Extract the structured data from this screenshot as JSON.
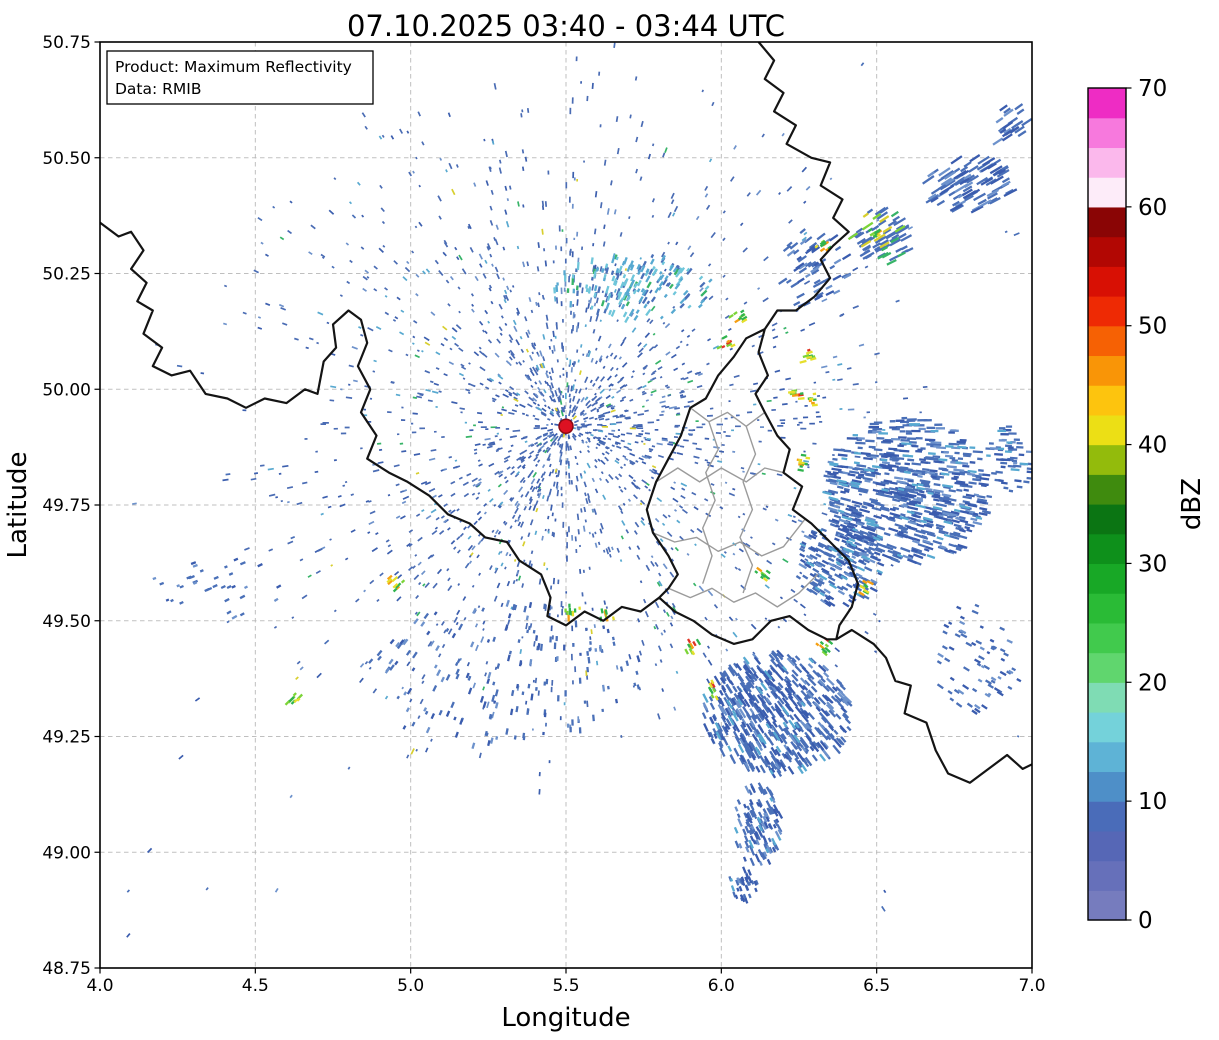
{
  "chart_data": {
    "type": "heatmap",
    "title": "07.10.2025 03:40 - 03:44 UTC",
    "xlabel": "Longitude",
    "ylabel": "Latitude",
    "xlim": [
      4.0,
      7.0
    ],
    "ylim": [
      48.75,
      50.75
    ],
    "xticks": [
      4.0,
      4.5,
      5.0,
      5.5,
      6.0,
      6.5,
      7.0
    ],
    "yticks": [
      48.75,
      49.0,
      49.25,
      49.5,
      49.75,
      50.0,
      50.25,
      50.5,
      50.75
    ],
    "grid": true,
    "legend_position": "none",
    "annotation_box": [
      "Product: Maximum Reflectivity",
      "Data: RMIB"
    ],
    "colorbar": {
      "label": "dBZ",
      "min": 0,
      "max": 70,
      "step": 2.5,
      "ticks": [
        0,
        10,
        20,
        30,
        40,
        50,
        60,
        70
      ],
      "colors": [
        "#767cbe",
        "#6670ba",
        "#5667b6",
        "#4a6cb9",
        "#4e8fc8",
        "#5eb3d6",
        "#74d2da",
        "#7fdcb4",
        "#60d66e",
        "#41ca4d",
        "#2abb36",
        "#18a826",
        "#0e901b",
        "#0b7513",
        "#3f8b0e",
        "#93bb0c",
        "#ecdf15",
        "#fdc40e",
        "#f99507",
        "#f66104",
        "#ee2a04",
        "#d81004",
        "#b20703",
        "#8a0505",
        "#fdecf9",
        "#fbb8ec",
        "#f779dd",
        "#ee2cc4"
      ]
    },
    "radar_site": {
      "lon": 5.5,
      "lat": 49.92,
      "marker_color": "#dd1122",
      "marker_edge": "#8a0a14"
    },
    "borders": {
      "country_color": "#141414",
      "district_color": "#9b9b9b",
      "country": [
        [
          [
            4.0,
            50.36
          ],
          [
            4.06,
            50.33
          ],
          [
            4.1,
            50.34
          ],
          [
            4.14,
            50.3
          ],
          [
            4.1,
            50.26
          ],
          [
            4.15,
            50.23
          ],
          [
            4.12,
            50.19
          ],
          [
            4.17,
            50.17
          ],
          [
            4.14,
            50.12
          ],
          [
            4.2,
            50.09
          ],
          [
            4.17,
            50.05
          ],
          [
            4.23,
            50.03
          ],
          [
            4.29,
            50.04
          ],
          [
            4.34,
            49.99
          ],
          [
            4.41,
            49.98
          ],
          [
            4.47,
            49.96
          ],
          [
            4.53,
            49.98
          ],
          [
            4.6,
            49.97
          ],
          [
            4.66,
            50.0
          ],
          [
            4.7,
            49.99
          ],
          [
            4.72,
            50.06
          ],
          [
            4.76,
            50.09
          ],
          [
            4.75,
            50.14
          ],
          [
            4.8,
            50.17
          ],
          [
            4.84,
            50.15
          ],
          [
            4.86,
            50.1
          ],
          [
            4.83,
            50.05
          ],
          [
            4.87,
            50.0
          ],
          [
            4.84,
            49.95
          ],
          [
            4.89,
            49.9
          ],
          [
            4.86,
            49.85
          ],
          [
            4.93,
            49.82
          ],
          [
            4.99,
            49.8
          ],
          [
            5.06,
            49.77
          ],
          [
            5.12,
            49.73
          ],
          [
            5.19,
            49.71
          ],
          [
            5.24,
            49.68
          ],
          [
            5.31,
            49.67
          ],
          [
            5.35,
            49.63
          ],
          [
            5.42,
            49.6
          ],
          [
            5.45,
            49.55
          ],
          [
            5.44,
            49.51
          ],
          [
            5.5,
            49.49
          ],
          [
            5.56,
            49.52
          ],
          [
            5.62,
            49.5
          ],
          [
            5.68,
            49.53
          ],
          [
            5.74,
            49.52
          ],
          [
            5.8,
            49.55
          ],
          [
            5.85,
            49.52
          ],
          [
            5.91,
            49.5
          ],
          [
            5.97,
            49.47
          ],
          [
            6.04,
            49.45
          ],
          [
            6.1,
            49.46
          ],
          [
            6.16,
            49.5
          ],
          [
            6.22,
            49.51
          ],
          [
            6.28,
            49.48
          ],
          [
            6.34,
            49.46
          ],
          [
            6.37,
            49.46
          ],
          [
            6.42,
            49.48
          ],
          [
            6.49,
            49.45
          ],
          [
            6.53,
            49.42
          ],
          [
            6.56,
            49.37
          ],
          [
            6.61,
            49.36
          ],
          [
            6.59,
            49.3
          ],
          [
            6.66,
            49.28
          ],
          [
            6.69,
            49.22
          ],
          [
            6.73,
            49.17
          ],
          [
            6.8,
            49.15
          ],
          [
            6.86,
            49.18
          ],
          [
            6.92,
            49.21
          ],
          [
            6.97,
            49.18
          ],
          [
            7.0,
            49.19
          ]
        ],
        [
          [
            6.12,
            50.75
          ],
          [
            6.17,
            50.71
          ],
          [
            6.14,
            50.67
          ],
          [
            6.2,
            50.64
          ],
          [
            6.17,
            50.6
          ],
          [
            6.24,
            50.57
          ],
          [
            6.21,
            50.53
          ],
          [
            6.29,
            50.5
          ],
          [
            6.35,
            50.49
          ],
          [
            6.32,
            50.44
          ],
          [
            6.39,
            50.41
          ],
          [
            6.36,
            50.37
          ],
          [
            6.41,
            50.34
          ],
          [
            6.36,
            50.31
          ],
          [
            6.32,
            50.28
          ],
          [
            6.35,
            50.24
          ],
          [
            6.3,
            50.2
          ],
          [
            6.24,
            50.17
          ],
          [
            6.18,
            50.17
          ],
          [
            6.14,
            50.13
          ],
          [
            6.12,
            50.08
          ],
          [
            6.15,
            50.03
          ],
          [
            6.11,
            49.99
          ],
          [
            6.14,
            49.95
          ],
          [
            6.18,
            49.9
          ],
          [
            6.22,
            49.87
          ],
          [
            6.2,
            49.82
          ],
          [
            6.26,
            49.79
          ],
          [
            6.23,
            49.74
          ],
          [
            6.29,
            49.71
          ],
          [
            6.35,
            49.67
          ],
          [
            6.41,
            49.63
          ],
          [
            6.44,
            49.58
          ],
          [
            6.42,
            49.53
          ],
          [
            6.38,
            49.49
          ],
          [
            6.37,
            49.46
          ]
        ],
        [
          [
            6.14,
            50.13
          ],
          [
            6.08,
            50.11
          ],
          [
            6.04,
            50.07
          ],
          [
            5.99,
            50.03
          ],
          [
            5.95,
            49.98
          ],
          [
            5.9,
            49.96
          ],
          [
            5.87,
            49.9
          ],
          [
            5.83,
            49.85
          ],
          [
            5.79,
            49.8
          ],
          [
            5.76,
            49.74
          ],
          [
            5.78,
            49.69
          ],
          [
            5.83,
            49.64
          ],
          [
            5.86,
            49.6
          ],
          [
            5.83,
            49.57
          ],
          [
            5.8,
            49.55
          ]
        ]
      ],
      "district": [
        [
          [
            5.9,
            49.96
          ],
          [
            5.96,
            49.93
          ],
          [
            6.02,
            49.95
          ],
          [
            6.08,
            49.92
          ],
          [
            6.14,
            49.95
          ]
        ],
        [
          [
            5.79,
            49.8
          ],
          [
            5.86,
            49.83
          ],
          [
            5.93,
            49.8
          ],
          [
            6.0,
            49.83
          ],
          [
            6.08,
            49.8
          ],
          [
            6.14,
            49.83
          ],
          [
            6.2,
            49.82
          ]
        ],
        [
          [
            5.96,
            49.93
          ],
          [
            5.99,
            49.87
          ],
          [
            5.95,
            49.82
          ],
          [
            5.98,
            49.76
          ],
          [
            5.94,
            49.7
          ],
          [
            5.97,
            49.64
          ],
          [
            5.94,
            49.58
          ]
        ],
        [
          [
            6.08,
            49.92
          ],
          [
            6.11,
            49.86
          ],
          [
            6.07,
            49.8
          ],
          [
            6.1,
            49.74
          ],
          [
            6.06,
            49.68
          ],
          [
            6.1,
            49.62
          ],
          [
            6.07,
            49.56
          ]
        ],
        [
          [
            5.78,
            49.69
          ],
          [
            5.85,
            49.67
          ],
          [
            5.92,
            49.68
          ],
          [
            5.99,
            49.65
          ],
          [
            6.06,
            49.67
          ],
          [
            6.13,
            49.64
          ],
          [
            6.2,
            49.66
          ],
          [
            6.27,
            49.72
          ]
        ],
        [
          [
            5.83,
            49.57
          ],
          [
            5.9,
            49.55
          ],
          [
            5.97,
            49.57
          ],
          [
            6.04,
            49.54
          ],
          [
            6.11,
            49.56
          ],
          [
            6.18,
            49.53
          ],
          [
            6.25,
            49.56
          ],
          [
            6.31,
            49.6
          ]
        ]
      ]
    },
    "echo_field": {
      "seed": 20251007,
      "radial_speckle": {
        "center": [
          5.5,
          49.92
        ],
        "max_radius_px": 372,
        "samples": 9000
      },
      "clusters": [
        {
          "name": "ne_far_streaks",
          "c": [
            6.8,
            50.44
          ],
          "rx": 0.14,
          "ry": 0.06,
          "n": 90,
          "len": [
            7,
            15
          ],
          "palette": "blue_sparse"
        },
        {
          "name": "ne_corner",
          "c": [
            6.93,
            50.57
          ],
          "rx": 0.06,
          "ry": 0.05,
          "n": 25,
          "len": [
            6,
            12
          ],
          "palette": "blue_sparse"
        },
        {
          "name": "ne_streaks",
          "c": [
            6.52,
            50.33
          ],
          "rx": 0.1,
          "ry": 0.06,
          "n": 70,
          "len": [
            6,
            13
          ],
          "palette": "mixed"
        },
        {
          "name": "ne_mid",
          "c": [
            6.3,
            50.26
          ],
          "rx": 0.11,
          "ry": 0.09,
          "n": 60,
          "len": [
            5,
            10
          ],
          "palette": "blue_sparse"
        },
        {
          "name": "north_arc",
          "c": [
            5.72,
            50.22
          ],
          "rx": 0.26,
          "ry": 0.07,
          "n": 170,
          "len": [
            3,
            8
          ],
          "palette": "cyan"
        },
        {
          "name": "east_large",
          "c": [
            6.6,
            49.78
          ],
          "rx": 0.27,
          "ry": 0.16,
          "n": 650,
          "len": [
            5,
            11
          ],
          "palette": "blue"
        },
        {
          "name": "east_edge",
          "c": [
            6.93,
            49.85
          ],
          "rx": 0.08,
          "ry": 0.07,
          "n": 60,
          "len": [
            4,
            9
          ],
          "palette": "blue"
        },
        {
          "name": "east_mid",
          "c": [
            6.38,
            49.62
          ],
          "rx": 0.14,
          "ry": 0.09,
          "n": 200,
          "len": [
            4,
            9
          ],
          "palette": "blue"
        },
        {
          "name": "south_large",
          "c": [
            6.18,
            49.3
          ],
          "rx": 0.24,
          "ry": 0.13,
          "n": 520,
          "len": [
            5,
            11
          ],
          "palette": "blue"
        },
        {
          "name": "south_small",
          "c": [
            6.12,
            49.06
          ],
          "rx": 0.08,
          "ry": 0.09,
          "n": 120,
          "len": [
            4,
            9
          ],
          "palette": "blue"
        },
        {
          "name": "south_tiny",
          "c": [
            6.07,
            48.93
          ],
          "rx": 0.05,
          "ry": 0.04,
          "n": 35,
          "len": [
            3,
            7
          ],
          "palette": "blue"
        },
        {
          "name": "sw_arcs",
          "c": [
            5.3,
            49.38
          ],
          "rx": 0.45,
          "ry": 0.16,
          "n": 160,
          "len": [
            3,
            7
          ],
          "palette": "blue_sparse"
        },
        {
          "name": "west_specks",
          "c": [
            4.38,
            49.57
          ],
          "rx": 0.22,
          "ry": 0.07,
          "n": 35,
          "len": [
            3,
            6
          ],
          "palette": "blue_sparse"
        },
        {
          "name": "se_sparse",
          "c": [
            6.82,
            49.42
          ],
          "rx": 0.16,
          "ry": 0.12,
          "n": 70,
          "len": [
            3,
            7
          ],
          "palette": "blue_sparse"
        }
      ],
      "bright_specks": [
        [
          6.02,
          50.1
        ],
        [
          6.06,
          50.16
        ],
        [
          6.3,
          49.98
        ],
        [
          6.24,
          49.99
        ],
        [
          6.26,
          49.84
        ],
        [
          6.13,
          49.6
        ],
        [
          5.63,
          49.51
        ],
        [
          5.52,
          49.52
        ],
        [
          5.9,
          49.44
        ],
        [
          4.62,
          49.33
        ],
        [
          4.95,
          49.58
        ],
        [
          6.47,
          49.57
        ],
        [
          6.33,
          50.31
        ],
        [
          6.5,
          50.33
        ],
        [
          6.28,
          50.07
        ],
        [
          5.97,
          49.35
        ],
        [
          6.33,
          49.44
        ]
      ],
      "sparse_count": 240,
      "palettes": {
        "speckle": [
          [
            "#4a6cb4",
            0.52
          ],
          [
            "#3c5fae",
            0.76
          ],
          [
            "#6e92cb",
            0.88
          ],
          [
            "#58a9d0",
            0.95
          ],
          [
            "#37b468",
            0.985
          ],
          [
            "#d8cf2e",
            1
          ]
        ],
        "blue": [
          [
            "#4a70b8",
            0.55
          ],
          [
            "#3a5cae",
            0.8
          ],
          [
            "#6d92cc",
            0.92
          ],
          [
            "#57a9d1",
            1
          ]
        ],
        "blue_sparse": [
          [
            "#4a70b8",
            0.5
          ],
          [
            "#3a5cae",
            0.78
          ],
          [
            "#6d92cc",
            1
          ]
        ],
        "cyan": [
          [
            "#57a9d1",
            0.35
          ],
          [
            "#6fc6da",
            0.6
          ],
          [
            "#4a70b8",
            0.9
          ],
          [
            "#37b468",
            1
          ]
        ],
        "mixed": [
          [
            "#4a70b8",
            0.62
          ],
          [
            "#37b468",
            0.8
          ],
          [
            "#7cd438",
            0.9
          ],
          [
            "#d8cf2e",
            1
          ]
        ],
        "speck": [
          [
            "#2fb44d",
            0.4
          ],
          [
            "#7cd438",
            0.62
          ],
          [
            "#e6df2c",
            0.82
          ],
          [
            "#f59f12",
            0.94
          ],
          [
            "#e03423",
            1
          ]
        ]
      }
    }
  },
  "style": {
    "grid_color": "#b9b9b9",
    "frame_color": "#000000",
    "background": "#ffffff"
  }
}
